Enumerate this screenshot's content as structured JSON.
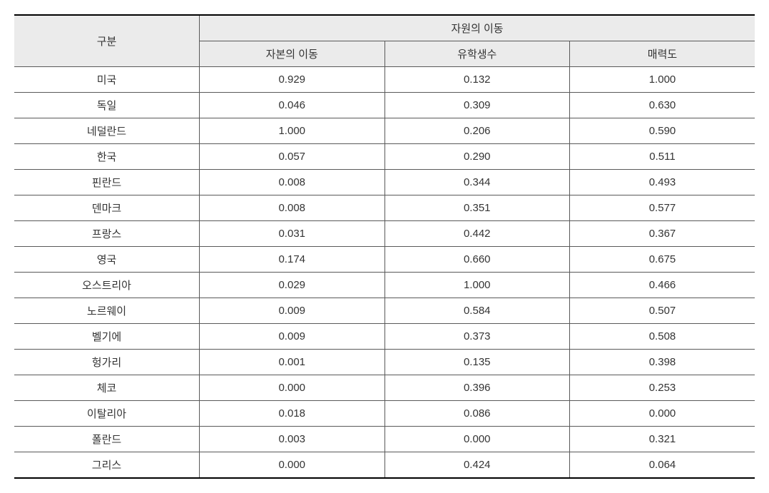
{
  "table": {
    "type": "table",
    "background_color": "#ffffff",
    "header_bg_color": "#ebebeb",
    "border_color": "#595959",
    "border_top_color": "#000000",
    "border_bottom_color": "#000000",
    "text_color": "#333333",
    "font_size": 15,
    "header": {
      "row_label": "구분",
      "group_header": "자원의 이동",
      "sub_headers": [
        "자본의 이동",
        "유학생수",
        "매력도"
      ]
    },
    "columns": [
      "구분",
      "자본의 이동",
      "유학생수",
      "매력도"
    ],
    "column_widths": [
      "25%",
      "25%",
      "25%",
      "25%"
    ],
    "rows": [
      {
        "label": "미국",
        "values": [
          "0.929",
          "0.132",
          "1.000"
        ]
      },
      {
        "label": "독일",
        "values": [
          "0.046",
          "0.309",
          "0.630"
        ]
      },
      {
        "label": "네덜란드",
        "values": [
          "1.000",
          "0.206",
          "0.590"
        ]
      },
      {
        "label": "한국",
        "values": [
          "0.057",
          "0.290",
          "0.511"
        ]
      },
      {
        "label": "핀란드",
        "values": [
          "0.008",
          "0.344",
          "0.493"
        ]
      },
      {
        "label": "덴마크",
        "values": [
          "0.008",
          "0.351",
          "0.577"
        ]
      },
      {
        "label": "프랑스",
        "values": [
          "0.031",
          "0.442",
          "0.367"
        ]
      },
      {
        "label": "영국",
        "values": [
          "0.174",
          "0.660",
          "0.675"
        ]
      },
      {
        "label": "오스트리아",
        "values": [
          "0.029",
          "1.000",
          "0.466"
        ]
      },
      {
        "label": "노르웨이",
        "values": [
          "0.009",
          "0.584",
          "0.507"
        ]
      },
      {
        "label": "벨기에",
        "values": [
          "0.009",
          "0.373",
          "0.508"
        ]
      },
      {
        "label": "헝가리",
        "values": [
          "0.001",
          "0.135",
          "0.398"
        ]
      },
      {
        "label": "체코",
        "values": [
          "0.000",
          "0.396",
          "0.253"
        ]
      },
      {
        "label": "이탈리아",
        "values": [
          "0.018",
          "0.086",
          "0.000"
        ]
      },
      {
        "label": "폴란드",
        "values": [
          "0.003",
          "0.000",
          "0.321"
        ]
      },
      {
        "label": "그리스",
        "values": [
          "0.000",
          "0.424",
          "0.064"
        ]
      }
    ]
  }
}
